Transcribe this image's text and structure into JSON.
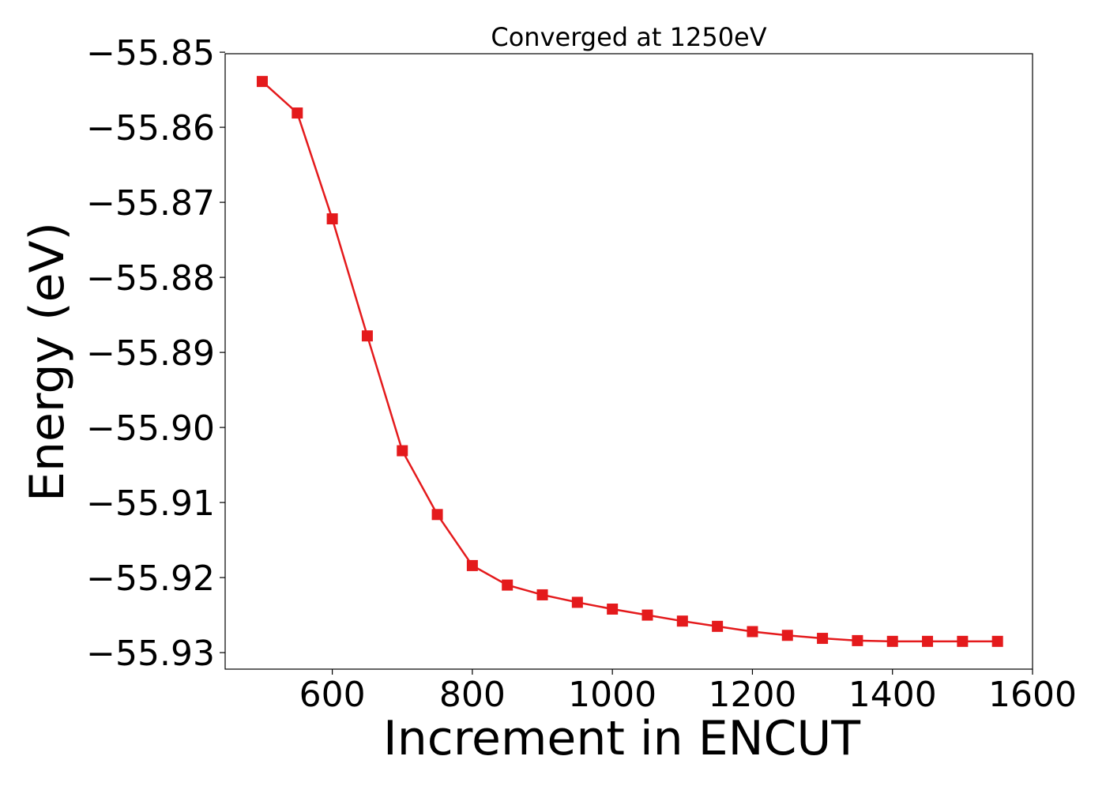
{
  "chart_data": {
    "type": "line",
    "title": "Converged at 1250eV",
    "xlabel": "Increment in ENCUT",
    "ylabel": "Energy (eV)",
    "xlim": [
      447,
      1600
    ],
    "ylim": [
      -55.9322,
      -55.8502
    ],
    "x_ticks": [
      600,
      800,
      1000,
      1200,
      1400,
      1600
    ],
    "x_tick_labels": [
      "600",
      "800",
      "1000",
      "1200",
      "1400",
      "1600"
    ],
    "y_ticks": [
      -55.85,
      -55.86,
      -55.87,
      -55.88,
      -55.89,
      -55.9,
      -55.91,
      -55.92,
      -55.93
    ],
    "y_tick_labels": [
      "−55.85",
      "−55.86",
      "−55.87",
      "−55.88",
      "−55.89",
      "−55.90",
      "−55.91",
      "−55.92",
      "−55.93"
    ],
    "grid": false,
    "series": [
      {
        "color": "#e41a1c",
        "marker": "square",
        "x": [
          500,
          550,
          600,
          650,
          700,
          750,
          800,
          850,
          900,
          950,
          1000,
          1050,
          1100,
          1150,
          1200,
          1250,
          1300,
          1350,
          1400,
          1450,
          1500,
          1550
        ],
        "y": [
          -55.8539,
          -55.8581,
          -55.8722,
          -55.8878,
          -55.9031,
          -55.9116,
          -55.9184,
          -55.921,
          -55.9223,
          -55.9233,
          -55.9242,
          -55.925,
          -55.9258,
          -55.9265,
          -55.9272,
          -55.9277,
          -55.9281,
          -55.9284,
          -55.9285,
          -55.9285,
          -55.9285,
          -55.9285
        ]
      }
    ]
  }
}
